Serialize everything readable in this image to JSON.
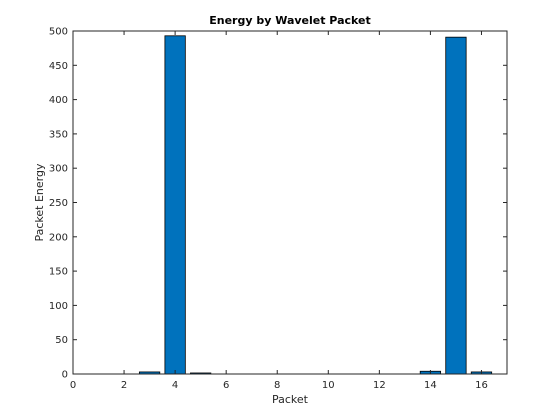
{
  "chart_data": {
    "type": "bar",
    "title": "Energy by Wavelet Packet",
    "xlabel": "Packet",
    "ylabel": "Packet Energy",
    "x": [
      1,
      2,
      3,
      4,
      5,
      6,
      7,
      8,
      9,
      10,
      11,
      12,
      13,
      14,
      15,
      16
    ],
    "values": [
      0.1,
      0.1,
      3,
      493,
      1.5,
      0.1,
      0.1,
      0.1,
      0.1,
      0.1,
      0.1,
      0.1,
      0.1,
      4,
      491,
      3
    ],
    "xlim": [
      0,
      17
    ],
    "ylim": [
      0,
      500
    ],
    "xticks": [
      0,
      2,
      4,
      6,
      8,
      10,
      12,
      14,
      16
    ],
    "yticks": [
      0,
      50,
      100,
      150,
      200,
      250,
      300,
      350,
      400,
      450,
      500
    ],
    "bar_color": "#0072BD",
    "bar_edge_color": "#000000",
    "grid": false
  }
}
